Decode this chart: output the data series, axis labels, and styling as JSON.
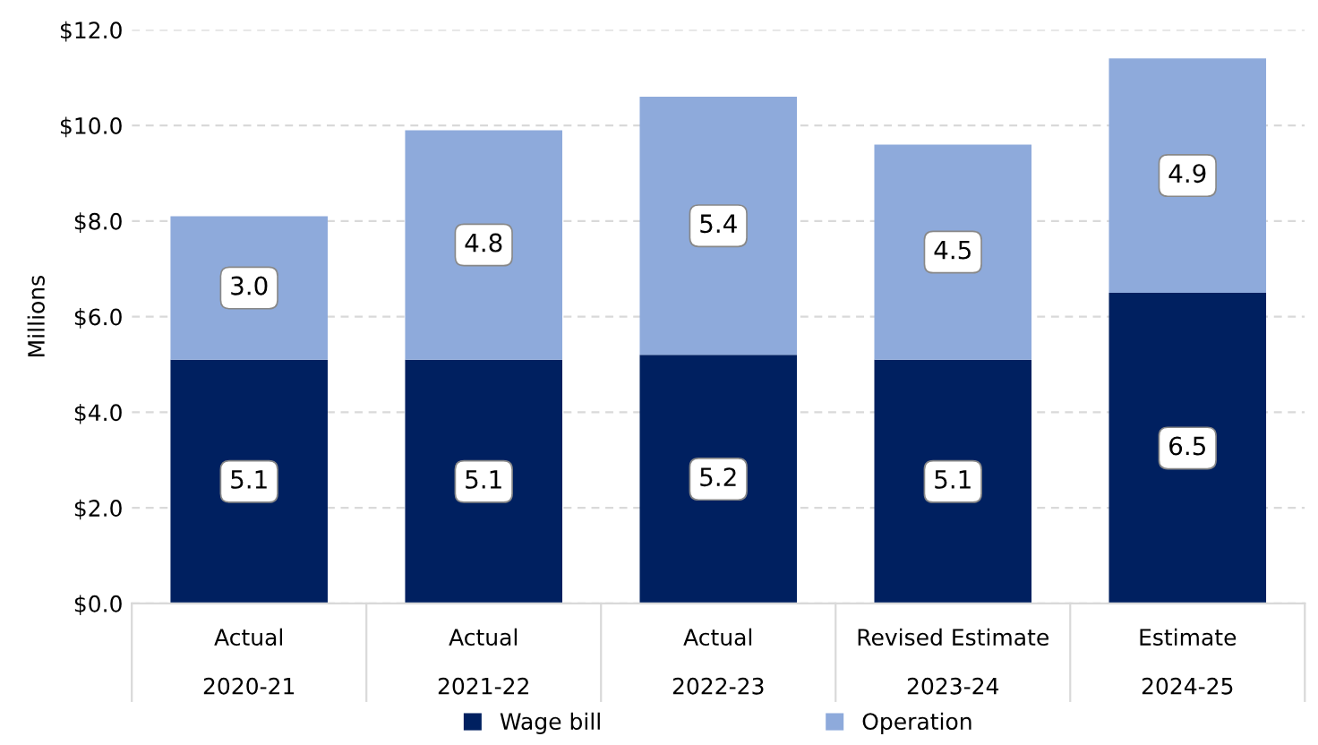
{
  "chart_data": {
    "type": "bar",
    "stacked": true,
    "ylabel": "Millions",
    "categories": [
      "Actual\n2020-21",
      "Actual\n2021-22",
      "Actual\n2022-23",
      "Revised Estimate\n2023-24",
      "Estimate\n2024-25"
    ],
    "series": [
      {
        "name": "Wage bill",
        "color": "#002060",
        "values": [
          5.1,
          5.1,
          5.2,
          5.1,
          6.5
        ],
        "value_labels": [
          "5.1",
          "5.1",
          "5.2",
          "5.1",
          "6.5"
        ]
      },
      {
        "name": "Operation",
        "color": "#8eaadb",
        "values": [
          3.0,
          4.8,
          5.4,
          4.5,
          4.9
        ],
        "value_labels": [
          "3.0",
          "4.8",
          "5.4",
          "4.5",
          "4.9"
        ]
      }
    ],
    "ylim": [
      0,
      12
    ],
    "yticks": [
      {
        "value": 0,
        "label": "$0.0"
      },
      {
        "value": 2,
        "label": "$2.0"
      },
      {
        "value": 4,
        "label": "$4.0"
      },
      {
        "value": 6,
        "label": "$6.0"
      },
      {
        "value": 8,
        "label": "$8.0"
      },
      {
        "value": 10,
        "label": "$10.0"
      },
      {
        "value": 12,
        "label": "$12.0"
      }
    ],
    "grid": "y",
    "legend": "bottom"
  }
}
